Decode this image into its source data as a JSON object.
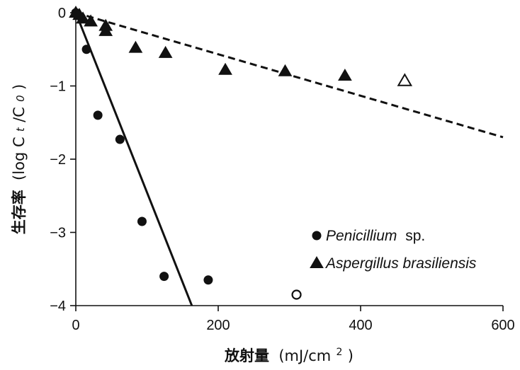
{
  "chart_data": {
    "type": "scatter",
    "xlabel": {
      "main": "放射量",
      "unit_open": "(mJ/cm",
      "unit_sup": "2",
      "unit_close": ")"
    },
    "ylabel": {
      "main": "生存率",
      "p1": "(log C",
      "p2": "t",
      "p3": "/C",
      "p4": "0",
      "p5": ")"
    },
    "xlim": [
      0,
      600
    ],
    "ylim": [
      -4,
      0
    ],
    "xticks": [
      0,
      200,
      400,
      600
    ],
    "yticks": [
      0,
      -1,
      -2,
      -3,
      -4
    ],
    "grid": false,
    "legend_position": "bottom-right",
    "series": [
      {
        "name": "Penicillium",
        "name_suffix": "sp.",
        "marker": "circle",
        "points": [
          [
            0,
            0
          ],
          [
            15,
            -0.5
          ],
          [
            31,
            -1.4
          ],
          [
            62,
            -1.73
          ],
          [
            93,
            -2.85
          ],
          [
            124,
            -3.6
          ],
          [
            186,
            -3.65
          ]
        ],
        "open_points": [
          [
            310,
            -3.85
          ]
        ],
        "fit": {
          "style": "solid",
          "from": [
            0,
            0
          ],
          "to": [
            163,
            -4
          ]
        }
      },
      {
        "name": "Aspergillus brasiliensis",
        "name_suffix": "",
        "marker": "triangle",
        "points": [
          [
            0,
            0
          ],
          [
            5,
            -0.03
          ],
          [
            10,
            -0.08
          ],
          [
            21,
            -0.12
          ],
          [
            42,
            -0.18
          ],
          [
            42,
            -0.25
          ],
          [
            84,
            -0.48
          ],
          [
            126,
            -0.55
          ],
          [
            210,
            -0.78
          ],
          [
            294,
            -0.8
          ],
          [
            378,
            -0.86
          ]
        ],
        "open_points": [
          [
            462,
            -0.93
          ]
        ],
        "fit": {
          "style": "dashed",
          "from": [
            0,
            0
          ],
          "to": [
            600,
            -1.7
          ]
        }
      }
    ]
  }
}
